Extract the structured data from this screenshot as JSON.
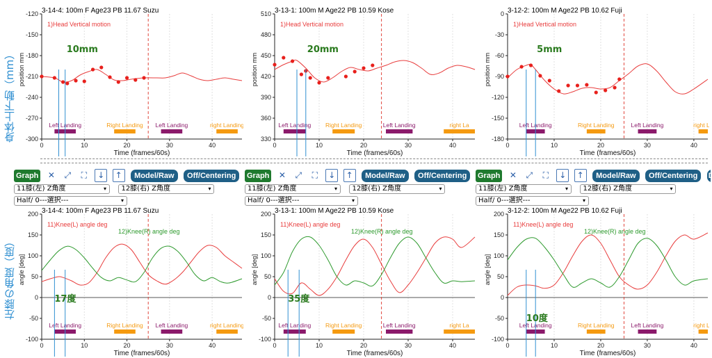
{
  "side_labels": {
    "top": "身体上下動（mm）",
    "bottom": "左膝の角度（度）"
  },
  "toolbar": {
    "graph": "Graph",
    "model_raw": "Model/Raw",
    "off_centering": "Off/Centering",
    "cut": "Do",
    "icons": [
      "close-icon",
      "expand-icon",
      "fit-icon",
      "arrow-down-icon",
      "arrow-up-icon"
    ]
  },
  "selects": {
    "knee_left": "11膝(左) Z角度",
    "knee_right": "12膝(右) Z角度",
    "half": "Half/ 0---選択---"
  },
  "colors": {
    "model": "#e83c3c",
    "raw_point": "#e8201c",
    "knee_right": "#2e9a2e",
    "landing_left": "#8b1a6b",
    "landing_right": "#f59a10",
    "annotation": "#2f8fd1",
    "delta_text": "#2a7a1e"
  },
  "chart_data": [
    {
      "id": "head-suzu",
      "type": "line",
      "title": "3-14-4: 100m  F  Age23  PB 11.67  Suzu",
      "legend": [
        "1)Head Vertical motion"
      ],
      "xlabel": "Time (frames/60s)",
      "ylabel": "position mm",
      "xlim": [
        0,
        47
      ],
      "ylim": [
        -300,
        -120
      ],
      "yticks": [
        -120,
        -150,
        -180,
        -210,
        -240,
        -270,
        -300
      ],
      "xticks": [
        0,
        10,
        20,
        30,
        40
      ],
      "series": [
        {
          "color": "#e83c3c",
          "x": [
            0,
            3,
            5,
            7,
            9,
            11,
            13,
            15,
            17,
            19,
            21,
            24,
            27,
            29,
            31,
            33,
            35,
            37,
            39,
            41,
            43,
            45,
            47
          ],
          "y": [
            -210,
            -212,
            -218,
            -216,
            -208,
            -203,
            -200,
            -207,
            -215,
            -216,
            -214,
            -212,
            -212,
            -212,
            -209,
            -205,
            -209,
            -214,
            -216,
            -214,
            -212,
            -214,
            -216
          ]
        },
        {
          "color": "#e8201c",
          "points": true,
          "x": [
            0,
            3,
            5,
            6,
            8,
            10,
            12,
            14,
            16,
            18,
            20,
            22,
            24
          ],
          "y": [
            -210,
            -212,
            -218,
            -220,
            -216,
            -217,
            -200,
            -197,
            -211,
            -218,
            -212,
            -215,
            -212
          ]
        }
      ],
      "vline": 25,
      "markers": [
        4,
        5.5
      ],
      "annotation": "10mm",
      "landings": [
        {
          "label": "Left Landing",
          "kind": "left",
          "x": [
            3,
            8
          ]
        },
        {
          "label": "Right Landing",
          "kind": "right",
          "x": [
            17,
            22
          ]
        },
        {
          "label": "Left Landing",
          "kind": "left",
          "x": [
            28,
            33
          ]
        },
        {
          "label": "right Landing",
          "kind": "right",
          "x": [
            41,
            46
          ]
        }
      ]
    },
    {
      "id": "head-kose",
      "type": "line",
      "title": "3-13-1: 100m  M  Age22  PB 10.59  Kose",
      "legend": [
        "1)Head Vertical motion"
      ],
      "xlabel": "Time (frames/60s)",
      "ylabel": "position mm",
      "xlim": [
        0,
        45
      ],
      "ylim": [
        330,
        510
      ],
      "yticks": [
        510,
        480,
        450,
        420,
        390,
        360,
        330
      ],
      "xticks": [
        0,
        10,
        20,
        30,
        40
      ],
      "series": [
        {
          "color": "#e83c3c",
          "x": [
            0,
            2,
            4,
            5,
            7,
            9,
            11,
            13,
            15,
            17,
            19,
            21,
            23,
            25,
            27,
            29,
            31,
            33,
            35,
            37,
            39,
            41,
            43,
            45
          ],
          "y": [
            430,
            437,
            442,
            443,
            432,
            418,
            412,
            418,
            427,
            433,
            430,
            428,
            432,
            436,
            441,
            443,
            440,
            432,
            423,
            425,
            432,
            436,
            434,
            430
          ]
        },
        {
          "color": "#e8201c",
          "points": true,
          "x": [
            0,
            2,
            4,
            6,
            7,
            8,
            10,
            12,
            16,
            18,
            20,
            22
          ],
          "y": [
            437,
            447,
            442,
            423,
            428,
            418,
            411,
            418,
            420,
            427,
            432,
            436
          ]
        }
      ],
      "vline": 24,
      "markers": [
        5,
        7
      ],
      "annotation": "20mm",
      "landings": [
        {
          "label": "Left Landing",
          "kind": "left",
          "x": [
            2,
            7
          ]
        },
        {
          "label": "Right Landing",
          "kind": "right",
          "x": [
            13,
            18
          ]
        },
        {
          "label": "Left Landing",
          "kind": "left",
          "x": [
            25,
            31
          ]
        },
        {
          "label": "right La",
          "kind": "right",
          "x": [
            38,
            45
          ]
        }
      ]
    },
    {
      "id": "head-fuji",
      "type": "line",
      "title": "3-12-2: 100m  M  Age22  PB 10.62  Fuji",
      "legend": [
        "1)Head Vertical motion"
      ],
      "xlabel": "Time (frames/60s)",
      "ylabel": "position mm",
      "xlim": [
        0,
        43
      ],
      "ylim": [
        -180,
        0
      ],
      "yticks": [
        0,
        -30,
        -60,
        -90,
        -120,
        -150,
        -180
      ],
      "xticks": [
        0,
        10,
        20,
        30,
        40
      ],
      "series": [
        {
          "color": "#e83c3c",
          "x": [
            0,
            2,
            4,
            5,
            6,
            8,
            10,
            12,
            14,
            16,
            18,
            20,
            22,
            24,
            26,
            28,
            30,
            32,
            34,
            36,
            38,
            40,
            43
          ],
          "y": [
            -92,
            -80,
            -74,
            -73,
            -80,
            -96,
            -108,
            -115,
            -112,
            -107,
            -106,
            -108,
            -106,
            -96,
            -86,
            -75,
            -72,
            -82,
            -98,
            -112,
            -115,
            -108,
            -94
          ]
        },
        {
          "color": "#e8201c",
          "points": true,
          "x": [
            0,
            3,
            5,
            7,
            9,
            11,
            13,
            15,
            17,
            19,
            21,
            23,
            24
          ],
          "y": [
            -90,
            -76,
            -74,
            -89,
            -96,
            -111,
            -103,
            -103,
            -102,
            -113,
            -110,
            -106,
            -94
          ]
        }
      ],
      "vline": 25,
      "markers": [
        4,
        6
      ],
      "annotation": "5mm",
      "landings": [
        {
          "label": "Left Landing",
          "kind": "left",
          "x": [
            4,
            8
          ]
        },
        {
          "label": "Right Landing",
          "kind": "right",
          "x": [
            17,
            21
          ]
        },
        {
          "label": "Left Landing",
          "kind": "left",
          "x": [
            28,
            32
          ]
        },
        {
          "label": "right La",
          "kind": "right",
          "x": [
            41,
            43
          ]
        }
      ]
    },
    {
      "id": "knee-suzu",
      "type": "line",
      "title": "3-14-4: 100m  F  Age23  PB 11.67  Suzu",
      "legend": [
        "11)Knee(L) angle deg",
        "12)Knee(R) angle deg"
      ],
      "xlabel": "Time (frames/60s)",
      "ylabel": "angle [deg]",
      "xlim": [
        0,
        47
      ],
      "ylim": [
        -100,
        200
      ],
      "yticks": [
        200,
        150,
        100,
        50,
        0,
        -50,
        -100
      ],
      "xticks": [
        0,
        10,
        20,
        30,
        40
      ],
      "series": [
        {
          "name": "11)Knee(L) angle deg",
          "color": "#e83c3c",
          "x": [
            0,
            2,
            4,
            5,
            7,
            9,
            11,
            13,
            15,
            17,
            19,
            21,
            23,
            25,
            27,
            29,
            31,
            33,
            35,
            37,
            39,
            41,
            43,
            45,
            47
          ],
          "y": [
            38,
            45,
            50,
            48,
            40,
            30,
            35,
            60,
            95,
            120,
            128,
            115,
            85,
            55,
            40,
            32,
            42,
            60,
            85,
            110,
            125,
            120,
            100,
            85,
            70
          ]
        },
        {
          "name": "12)Knee(R) angle deg",
          "color": "#2e9a2e",
          "x": [
            0,
            2,
            4,
            6,
            8,
            10,
            12,
            14,
            16,
            18,
            20,
            22,
            24,
            26,
            28,
            30,
            32,
            34,
            36,
            38,
            40,
            42,
            44,
            47
          ],
          "y": [
            65,
            90,
            112,
            123,
            115,
            95,
            70,
            48,
            40,
            48,
            42,
            38,
            60,
            95,
            118,
            123,
            110,
            85,
            55,
            40,
            48,
            38,
            35,
            45
          ]
        }
      ],
      "vline": 25,
      "markers": [
        3,
        5.5
      ],
      "annotation": "17度",
      "landings": [
        {
          "label": "Left Landing",
          "kind": "left",
          "x": [
            3,
            8
          ]
        },
        {
          "label": "Right Landing",
          "kind": "right",
          "x": [
            17,
            22
          ]
        },
        {
          "label": "Left Landing",
          "kind": "left",
          "x": [
            28,
            33
          ]
        },
        {
          "label": "right Landing",
          "kind": "right",
          "x": [
            41,
            46
          ]
        }
      ]
    },
    {
      "id": "knee-kose",
      "type": "line",
      "title": "3-13-1: 100m  M  Age22  PB 10.59  Kose",
      "legend": [
        "11)Knee(L) angle deg",
        "12)Knee(R) angle deg"
      ],
      "xlabel": "Time (frames/60s)",
      "ylabel": "angle [deg]",
      "xlim": [
        0,
        45
      ],
      "ylim": [
        -100,
        200
      ],
      "yticks": [
        200,
        150,
        100,
        50,
        0,
        -50,
        -100
      ],
      "xticks": [
        0,
        10,
        20,
        30,
        40
      ],
      "series": [
        {
          "name": "11)Knee(L) angle deg",
          "color": "#e83c3c",
          "x": [
            0,
            2,
            4,
            6,
            8,
            10,
            12,
            14,
            16,
            18,
            20,
            22,
            24,
            26,
            28,
            30,
            32,
            34,
            36,
            38,
            40,
            42,
            45
          ],
          "y": [
            45,
            15,
            10,
            35,
            20,
            5,
            20,
            50,
            90,
            125,
            140,
            120,
            80,
            40,
            12,
            30,
            60,
            95,
            130,
            145,
            140,
            120,
            145
          ]
        },
        {
          "name": "12)Knee(R) angle deg",
          "color": "#2e9a2e",
          "x": [
            0,
            2,
            4,
            6,
            8,
            10,
            12,
            14,
            16,
            18,
            20,
            22,
            24,
            26,
            28,
            30,
            32,
            34,
            36,
            38,
            40,
            42,
            45
          ],
          "y": [
            30,
            60,
            110,
            140,
            145,
            125,
            90,
            50,
            30,
            40,
            35,
            28,
            55,
            95,
            130,
            145,
            130,
            95,
            60,
            35,
            40,
            38,
            40
          ]
        }
      ],
      "vline": 24,
      "markers": [
        3,
        5.5
      ],
      "annotation": "35度",
      "landings": [
        {
          "label": "Left Landing",
          "kind": "left",
          "x": [
            2,
            7
          ]
        },
        {
          "label": "Right Landing",
          "kind": "right",
          "x": [
            13,
            18
          ]
        },
        {
          "label": "Left Landing",
          "kind": "left",
          "x": [
            25,
            31
          ]
        },
        {
          "label": "right La",
          "kind": "right",
          "x": [
            38,
            45
          ]
        }
      ]
    },
    {
      "id": "knee-fuji",
      "type": "line",
      "title": "3-12-2: 100m  M  Age22  PB 10.62  Fuji",
      "legend": [
        "11)Knee(L) angle deg",
        "12)Knee(R) angle deg"
      ],
      "xlabel": "Time (frames/60s)",
      "ylabel": "angle [deg]",
      "xlim": [
        0,
        43
      ],
      "ylim": [
        -100,
        200
      ],
      "yticks": [
        200,
        150,
        100,
        50,
        0,
        -50,
        -100
      ],
      "xticks": [
        0,
        10,
        20,
        30,
        40
      ],
      "series": [
        {
          "name": "11)Knee(L) angle deg",
          "color": "#e83c3c",
          "x": [
            0,
            2,
            4,
            6,
            8,
            10,
            12,
            14,
            16,
            18,
            20,
            22,
            24,
            26,
            28,
            30,
            32,
            34,
            36,
            38,
            40,
            43
          ],
          "y": [
            5,
            25,
            30,
            28,
            22,
            30,
            60,
            100,
            135,
            150,
            130,
            90,
            50,
            30,
            20,
            30,
            60,
            100,
            135,
            150,
            140,
            155
          ]
        },
        {
          "name": "12)Knee(R) angle deg",
          "color": "#2e9a2e",
          "x": [
            0,
            2,
            4,
            6,
            8,
            10,
            12,
            14,
            16,
            18,
            20,
            22,
            24,
            26,
            28,
            30,
            32,
            34,
            36,
            38,
            40,
            43
          ],
          "y": [
            90,
            120,
            140,
            142,
            120,
            90,
            55,
            25,
            35,
            45,
            35,
            25,
            50,
            90,
            130,
            142,
            125,
            90,
            50,
            30,
            40,
            45
          ]
        }
      ],
      "vline": 25,
      "markers": [
        4,
        6
      ],
      "annotation": "10度",
      "landings": [
        {
          "label": "Left Landing",
          "kind": "left",
          "x": [
            4,
            8
          ]
        },
        {
          "label": "Right Landing",
          "kind": "right",
          "x": [
            17,
            21
          ]
        },
        {
          "label": "Left Landing",
          "kind": "left",
          "x": [
            28,
            32
          ]
        },
        {
          "label": "right La",
          "kind": "right",
          "x": [
            41,
            43
          ]
        }
      ]
    }
  ]
}
